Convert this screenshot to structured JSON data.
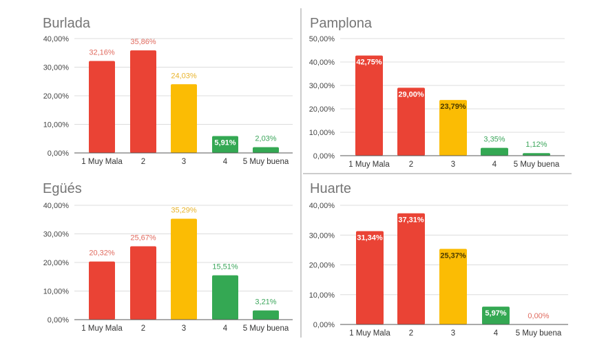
{
  "chart_data": [
    {
      "type": "bar",
      "title": "Burlada",
      "categories": [
        "1 Muy Mala",
        "2",
        "3",
        "4",
        "5 Muy buena"
      ],
      "values": [
        32.16,
        35.86,
        24.03,
        5.91,
        2.03
      ],
      "value_labels": [
        "32,16%",
        "35,86%",
        "24,03%",
        "5,91%",
        "2,03%"
      ],
      "yticks": [
        "0,00%",
        "10,00%",
        "20,00%",
        "30,00%",
        "40,00%"
      ],
      "ylim": [
        0,
        40
      ],
      "grid": true,
      "colors": [
        "#ea4335",
        "#ea4335",
        "#fbbc04",
        "#34a853",
        "#34a853"
      ]
    },
    {
      "type": "bar",
      "title": "Pamplona",
      "categories": [
        "1 Muy Mala",
        "2",
        "3",
        "4",
        "5 Muy buena"
      ],
      "values": [
        42.75,
        29.0,
        23.79,
        3.35,
        1.12
      ],
      "value_labels": [
        "42,75%",
        "29,00%",
        "23,79%",
        "3,35%",
        "1,12%"
      ],
      "yticks": [
        "0,00%",
        "10,00%",
        "20,00%",
        "30,00%",
        "40,00%",
        "50,00%"
      ],
      "ylim": [
        0,
        50
      ],
      "grid": true,
      "colors": [
        "#ea4335",
        "#ea4335",
        "#fbbc04",
        "#34a853",
        "#34a853"
      ]
    },
    {
      "type": "bar",
      "title": "Egüés",
      "categories": [
        "1 Muy Mala",
        "2",
        "3",
        "4",
        "5 Muy buena"
      ],
      "values": [
        20.32,
        25.67,
        35.29,
        15.51,
        3.21
      ],
      "value_labels": [
        "20,32%",
        "25,67%",
        "35,29%",
        "15,51%",
        "3,21%"
      ],
      "yticks": [
        "0,00%",
        "10,00%",
        "20,00%",
        "30,00%",
        "40,00%"
      ],
      "ylim": [
        0,
        40
      ],
      "grid": true,
      "colors": [
        "#ea4335",
        "#ea4335",
        "#fbbc04",
        "#34a853",
        "#34a853"
      ]
    },
    {
      "type": "bar",
      "title": "Huarte",
      "categories": [
        "1 Muy Mala",
        "2",
        "3",
        "4",
        "5 Muy buena"
      ],
      "values": [
        31.34,
        37.31,
        25.37,
        5.97,
        0.0
      ],
      "value_labels": [
        "31,34%",
        "37,31%",
        "25,37%",
        "5,97%",
        "0,00%"
      ],
      "yticks": [
        "0,00%",
        "10,00%",
        "20,00%",
        "30,00%",
        "40,00%"
      ],
      "ylim": [
        0,
        40
      ],
      "grid": true,
      "colors": [
        "#ea4335",
        "#ea4335",
        "#fbbc04",
        "#34a853",
        "#ea4335"
      ]
    }
  ]
}
